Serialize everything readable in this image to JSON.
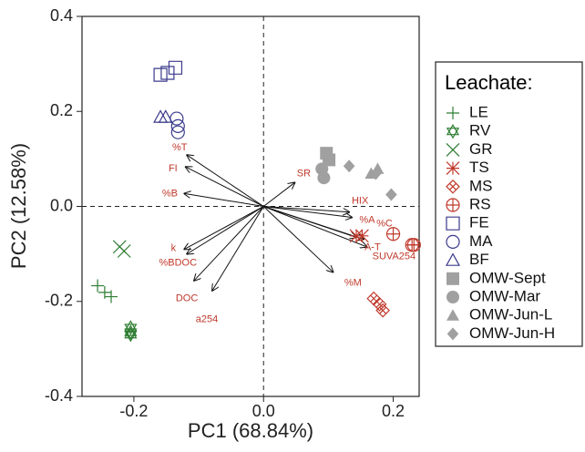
{
  "chart_data": {
    "type": "biplot",
    "xlabel": "PC1 (68.84%)",
    "ylabel": "PC2 (12.58%)",
    "xlim": [
      -0.28,
      0.24
    ],
    "ylim": [
      -0.4,
      0.4
    ],
    "xticks": [
      -0.2,
      {
        "value": 0,
        "label": "0.0"
      },
      0.2
    ],
    "yticks": [
      -0.4,
      -0.2,
      {
        "value": 0,
        "label": "0.0"
      },
      0.2,
      0.4
    ],
    "legend_title": "Leachate:",
    "legend_position": "right",
    "series": [
      {
        "name": "LE",
        "color": "#2e7d32",
        "marker": "plus",
        "filled": false,
        "x": [
          -0.256,
          -0.245,
          -0.235
        ],
        "y": [
          -0.167,
          -0.181,
          -0.19
        ]
      },
      {
        "name": "RV",
        "color": "#2e7d32",
        "marker": "hexagram",
        "filled": false,
        "x": [
          -0.205,
          -0.205,
          -0.205
        ],
        "y": [
          -0.255,
          -0.265,
          -0.27
        ]
      },
      {
        "name": "GR",
        "color": "#2e7d32",
        "marker": "x",
        "filled": false,
        "x": [
          -0.222,
          -0.215
        ],
        "y": [
          -0.085,
          -0.094
        ]
      },
      {
        "name": "TS",
        "color": "#c0392b",
        "marker": "asterisk",
        "filled": false,
        "x": [
          0.143,
          0.152
        ],
        "y": [
          -0.062,
          -0.062
        ]
      },
      {
        "name": "MS",
        "color": "#c0392b",
        "marker": "diamond-x",
        "filled": false,
        "x": [
          0.17,
          0.179,
          0.184
        ],
        "y": [
          -0.194,
          -0.206,
          -0.219
        ]
      },
      {
        "name": "RS",
        "color": "#c0392b",
        "marker": "circle-plus",
        "filled": false,
        "x": [
          0.2,
          0.229,
          0.232
        ],
        "y": [
          -0.058,
          -0.081,
          -0.081
        ]
      },
      {
        "name": "FE",
        "color": "#3a3a8c",
        "marker": "square",
        "filled": false,
        "x": [
          -0.159,
          -0.148,
          -0.136
        ],
        "y": [
          0.277,
          0.281,
          0.292
        ]
      },
      {
        "name": "MA",
        "color": "#3a3a8c",
        "marker": "circle",
        "filled": false,
        "x": [
          -0.134,
          -0.132,
          -0.132
        ],
        "y": [
          0.185,
          0.169,
          0.156
        ]
      },
      {
        "name": "BF",
        "color": "#3a3a8c",
        "marker": "triangle",
        "filled": false,
        "x": [
          -0.159,
          -0.151
        ],
        "y": [
          0.188,
          0.188
        ]
      },
      {
        "name": "OMW-Sept",
        "color": "#a0a0a0",
        "marker": "square",
        "filled": true,
        "x": [
          0.097,
          0.101
        ],
        "y": [
          0.112,
          0.098
        ]
      },
      {
        "name": "OMW-Mar",
        "color": "#a0a0a0",
        "marker": "circle",
        "filled": true,
        "x": [
          0.09,
          0.093
        ],
        "y": [
          0.079,
          0.06
        ]
      },
      {
        "name": "OMW-Jun-L",
        "color": "#a0a0a0",
        "marker": "triangle",
        "filled": true,
        "x": [
          0.166,
          0.176
        ],
        "y": [
          0.069,
          0.079
        ]
      },
      {
        "name": "OMW-Jun-H",
        "color": "#a0a0a0",
        "marker": "diamond",
        "filled": true,
        "x": [
          0.132,
          0.173,
          0.197
        ],
        "y": [
          0.085,
          0.069,
          0.025
        ]
      }
    ],
    "loading_color": "#c0392b",
    "loadings": [
      {
        "label": "%T",
        "x": -0.118,
        "y": 0.108
      },
      {
        "label": "FI",
        "x": -0.12,
        "y": 0.083
      },
      {
        "label": "%B",
        "x": -0.122,
        "y": 0.027
      },
      {
        "label": "k",
        "x": -0.122,
        "y": -0.09
      },
      {
        "label": "%BDOC",
        "x": -0.118,
        "y": -0.1
      },
      {
        "label": "DOC",
        "x": -0.107,
        "y": -0.156
      },
      {
        "label": "a254",
        "x": -0.079,
        "y": -0.177
      },
      {
        "label": "SR",
        "x": 0.048,
        "y": 0.05
      },
      {
        "label": "HIX",
        "x": 0.132,
        "y": -0.012
      },
      {
        "label": "%C",
        "x": 0.136,
        "y": -0.023
      },
      {
        "label": "%A",
        "x": 0.143,
        "y": -0.065
      },
      {
        "label": "A-T",
        "x": 0.154,
        "y": -0.069
      },
      {
        "label": "SUVA254",
        "x": 0.159,
        "y": -0.085
      },
      {
        "label": "%M",
        "x": 0.107,
        "y": -0.138
      }
    ]
  }
}
